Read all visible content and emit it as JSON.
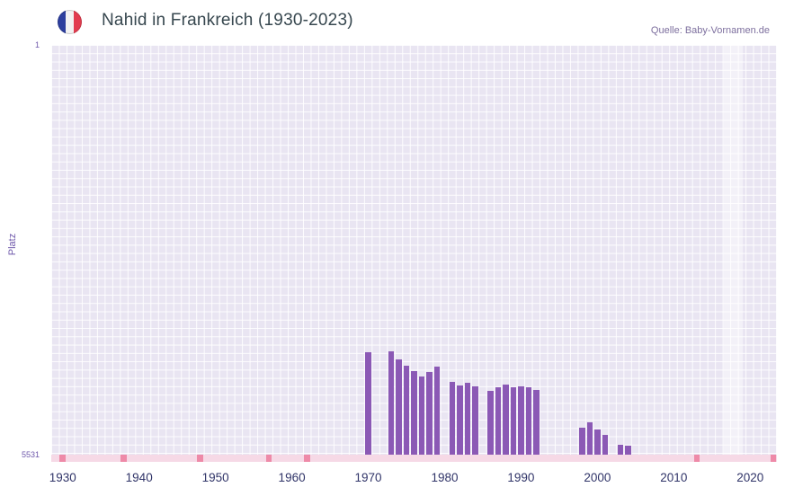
{
  "header": {
    "title": "Nahid in Frankreich (1930-2023)",
    "source": "Quelle: Baby-Vornamen.de",
    "flag_icon": "france-flag-icon"
  },
  "chart_data": {
    "type": "bar",
    "title": "Nahid in Frankreich (1930-2023)",
    "ylabel": "Platz",
    "y_axis": {
      "min": 1,
      "max": 5531,
      "inverted": true,
      "top_label": "1",
      "bottom_label": "5531"
    },
    "x_axis": {
      "plot_start_year": 1928.5,
      "plot_end_year": 2023.5,
      "tick_years": [
        1930,
        1940,
        1950,
        1960,
        1970,
        1980,
        1990,
        2000,
        2010,
        2020
      ]
    },
    "series": [
      {
        "name": "Platz",
        "color": "#8b59b5",
        "points": [
          {
            "year": 1970,
            "rank": 4150
          },
          {
            "year": 1973,
            "rank": 4140
          },
          {
            "year": 1974,
            "rank": 4240
          },
          {
            "year": 1975,
            "rank": 4330
          },
          {
            "year": 1976,
            "rank": 4400
          },
          {
            "year": 1977,
            "rank": 4470
          },
          {
            "year": 1978,
            "rank": 4410
          },
          {
            "year": 1979,
            "rank": 4340
          },
          {
            "year": 1981,
            "rank": 4550
          },
          {
            "year": 1982,
            "rank": 4600
          },
          {
            "year": 1983,
            "rank": 4560
          },
          {
            "year": 1984,
            "rank": 4610
          },
          {
            "year": 1986,
            "rank": 4670
          },
          {
            "year": 1987,
            "rank": 4620
          },
          {
            "year": 1988,
            "rank": 4590
          },
          {
            "year": 1989,
            "rank": 4620
          },
          {
            "year": 1990,
            "rank": 4610
          },
          {
            "year": 1991,
            "rank": 4620
          },
          {
            "year": 1992,
            "rank": 4660
          },
          {
            "year": 1998,
            "rank": 5170
          },
          {
            "year": 1999,
            "rank": 5100
          },
          {
            "year": 2000,
            "rank": 5190
          },
          {
            "year": 2001,
            "rank": 5260
          },
          {
            "year": 2003,
            "rank": 5400
          },
          {
            "year": 2004,
            "rank": 5410
          }
        ]
      }
    ],
    "unranked_band": {
      "band_color": "#f6d9e6",
      "mark_color": "#ee8aa8",
      "mark_years": [
        1930,
        1938,
        1948,
        1957,
        1962,
        2013,
        2023
      ]
    },
    "highlight_column": {
      "start_year": 2016.5,
      "end_year": 2019.0,
      "color": "rgba(255,255,255,0.45)"
    },
    "colors": {
      "plot_bg": "#e9e5f2",
      "grid_line": "#ffffff",
      "bar": "#8b59b5",
      "tick_label": "#303468",
      "axis_label": "#6f58ab",
      "title": "#37474f",
      "source": "#7d6f9e"
    }
  }
}
